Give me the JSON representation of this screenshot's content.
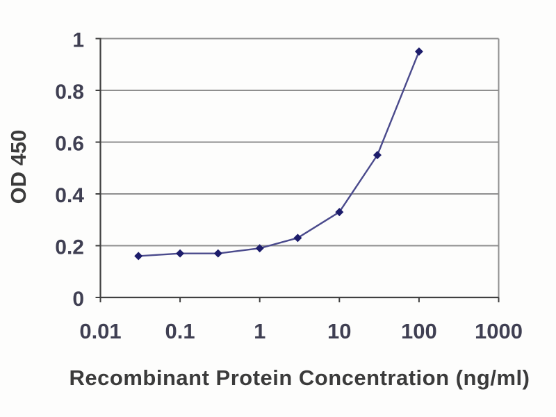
{
  "figure": {
    "background_color": "#fdfdfc"
  },
  "chart_data": {
    "type": "line",
    "title": "",
    "xlabel": "Recombinant Protein Concentration (ng/ml)",
    "ylabel": "OD 450",
    "x_scale": "log",
    "y_scale": "linear",
    "xlim": [
      0.01,
      1000
    ],
    "ylim": [
      0,
      1
    ],
    "x_ticks": [
      "0.01",
      "0.1",
      "1",
      "10",
      "100",
      "1000"
    ],
    "y_ticks": [
      "0",
      "0.2",
      "0.4",
      "0.6",
      "0.8",
      "1"
    ],
    "grid": "horizontal-only",
    "legend": "none",
    "series": [
      {
        "name": "OD 450",
        "marker": "diamond",
        "x": [
          0.03,
          0.1,
          0.3,
          1,
          3,
          10,
          30,
          100
        ],
        "y": [
          0.16,
          0.17,
          0.17,
          0.19,
          0.23,
          0.33,
          0.55,
          0.95
        ]
      }
    ],
    "colors": {
      "line": "#4a4a8c",
      "marker": "#1d1d6b",
      "grid": "#8f8f8f",
      "axis": "#404040",
      "tick_label": "#3f3f52",
      "axis_title": "#3b3b3b"
    }
  }
}
